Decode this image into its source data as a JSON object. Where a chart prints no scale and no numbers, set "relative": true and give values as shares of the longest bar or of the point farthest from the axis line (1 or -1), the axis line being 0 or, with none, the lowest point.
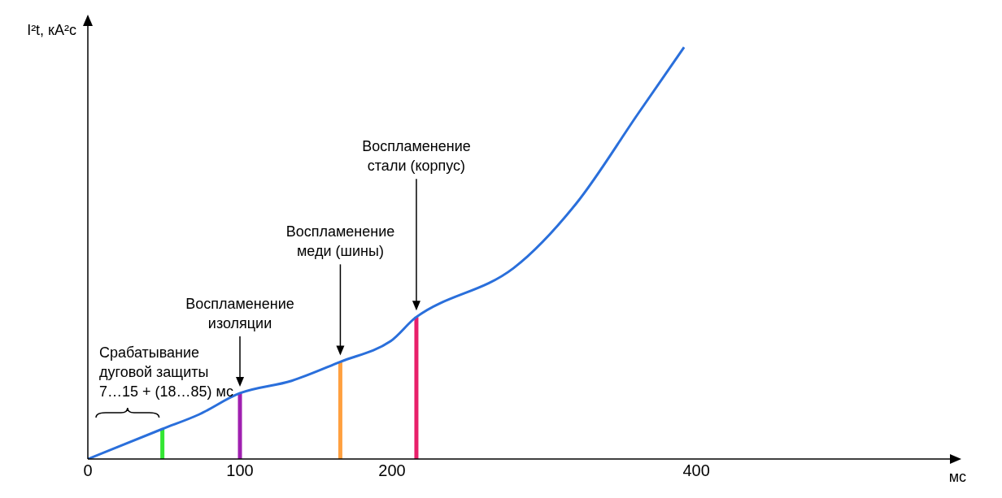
{
  "chart_data": {
    "type": "line",
    "relative": true,
    "xlabel": "мс",
    "ylabel": "I²t, кА²с",
    "xlim": [
      0,
      570
    ],
    "xticks": [
      0,
      100,
      200,
      400
    ],
    "grid": false,
    "legend": false,
    "marker": "none",
    "line_style": "solid",
    "series": [
      {
        "color": "#2a6fdb",
        "x": [
          0,
          49,
          73,
          100,
          134,
          166,
          199,
          216,
          280,
          321,
          362,
          392
        ],
        "values": [
          0,
          0.073,
          0.108,
          0.16,
          0.19,
          0.236,
          0.286,
          0.345,
          0.464,
          0.62,
          0.84,
          1
        ]
      },
      {
        "color": "#33e633",
        "x": [
          49,
          49
        ],
        "values": [
          0,
          0.073
        ]
      },
      {
        "color": "#a020b0",
        "x": [
          100,
          100
        ],
        "values": [
          0,
          0.16
        ]
      },
      {
        "color": "#ffa040",
        "x": [
          166,
          166
        ],
        "values": [
          0,
          0.236
        ]
      },
      {
        "color": "#e8206a",
        "x": [
          216,
          216
        ],
        "values": [
          0,
          0.345
        ]
      }
    ],
    "annotations": [
      "Срабатывание\nдуговой защиты\n7…15 + (18…85) мс",
      "Воспламенение\nизоляции",
      "Воспламенение\nмеди (шины)",
      "Воспламенение\nстали (корпус)"
    ]
  }
}
